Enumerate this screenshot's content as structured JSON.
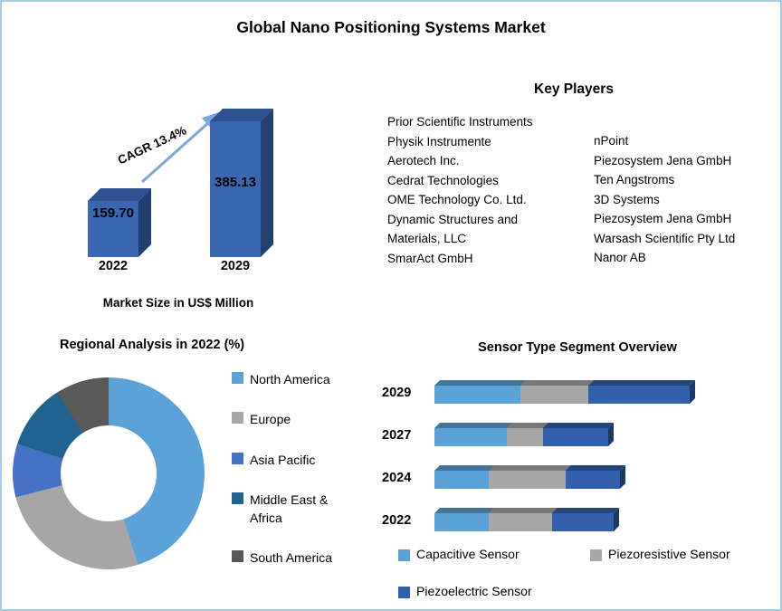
{
  "title": "Global Nano Positioning Systems Market",
  "key_players": {
    "heading": "Key Players",
    "left": [
      "Prior Scientific Instruments",
      "Physik Instrumente",
      "Aerotech Inc.",
      "Cedrat Technologies",
      "OME Technology Co. Ltd.",
      "Dynamic Structures and Materials, LLC",
      "SmarAct GmbH"
    ],
    "right": [
      "nPoint",
      "Piezosystem Jena GmbH",
      "Ten Angstroms",
      "3D Systems",
      "Piezosystem Jena GmbH",
      "Warsash Scientific Pty Ltd",
      "Nanor AB"
    ]
  },
  "chart_data": [
    {
      "type": "bar",
      "title": "Market Size in US$ Million",
      "categories": [
        "2022",
        "2029"
      ],
      "values": [
        159.7,
        385.13
      ],
      "value_labels": [
        "159.70",
        "385.13"
      ],
      "annotation": "CAGR 13.4%",
      "bar_color": "#3A67B1",
      "ylim": [
        0,
        400
      ]
    },
    {
      "type": "pie",
      "donut": true,
      "title": "Regional Analysis in 2022 (%)",
      "labels": [
        "North America",
        "Europe",
        "Asia Pacific",
        "Middle East & Africa",
        "South America"
      ],
      "values": [
        45,
        26,
        9,
        11,
        9
      ],
      "colors": [
        "#5BA2D9",
        "#A6A6A6",
        "#4472C4",
        "#1F6391",
        "#595959"
      ],
      "legend_position": "right"
    },
    {
      "type": "bar",
      "orientation": "horizontal",
      "stacked": true,
      "title": "Sensor Type Segment Overview",
      "categories": [
        "2029",
        "2027",
        "2024",
        "2022"
      ],
      "series": [
        {
          "name": "Capacitive Sensor",
          "color": "#5BA2D9",
          "values": [
            95,
            80,
            60,
            60
          ]
        },
        {
          "name": "Piezoresistive Sensor",
          "color": "#A6A6A6",
          "values": [
            75,
            40,
            85,
            70
          ]
        },
        {
          "name": "Piezoelectric Sensor",
          "color": "#3161AC",
          "values": [
            112,
            72,
            60,
            68
          ]
        }
      ],
      "value_units": "relative segment length (axis unlabeled, estimated)"
    }
  ]
}
